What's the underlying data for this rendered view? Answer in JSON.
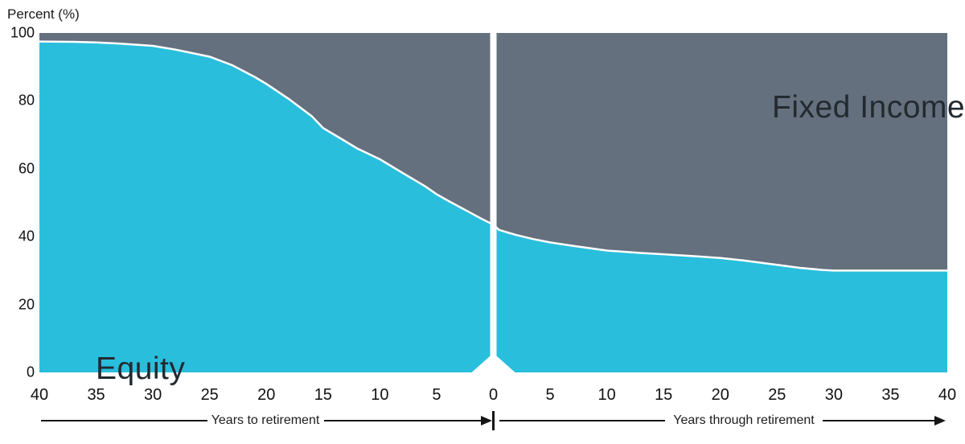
{
  "chart_data": {
    "type": "area",
    "title": "",
    "ylabel": "Percent (%)",
    "ylim": [
      0,
      100
    ],
    "x_range_years": [
      -40,
      40
    ],
    "grid": false,
    "legend_position": "labels-inside-areas",
    "stacked_total": 100,
    "y_ticks": [
      100,
      80,
      60,
      40,
      20,
      0
    ],
    "x_tick_labels": [
      "40",
      "35",
      "30",
      "25",
      "20",
      "15",
      "10",
      "5",
      "0",
      "5",
      "10",
      "15",
      "20",
      "25",
      "30",
      "35",
      "40"
    ],
    "x_axis_segment_labels": {
      "left": "Years to retirement",
      "right": "Years through retirement"
    },
    "retirement_divider_x": 0,
    "series": [
      {
        "name": "Equity",
        "color": "#2ABEDD",
        "points": [
          {
            "x": -40,
            "y": 97.5
          },
          {
            "x": -37,
            "y": 97.4
          },
          {
            "x": -35,
            "y": 97.2
          },
          {
            "x": -33,
            "y": 96.9
          },
          {
            "x": -30,
            "y": 96.2
          },
          {
            "x": -28,
            "y": 95.1
          },
          {
            "x": -25,
            "y": 93
          },
          {
            "x": -23,
            "y": 90.5
          },
          {
            "x": -21,
            "y": 87
          },
          {
            "x": -20,
            "y": 85
          },
          {
            "x": -18,
            "y": 80.5
          },
          {
            "x": -16,
            "y": 75.5
          },
          {
            "x": -15,
            "y": 72
          },
          {
            "x": -13,
            "y": 68
          },
          {
            "x": -12,
            "y": 66
          },
          {
            "x": -10,
            "y": 62.8
          },
          {
            "x": -8,
            "y": 58.8
          },
          {
            "x": -6,
            "y": 54.8
          },
          {
            "x": -5,
            "y": 52.5
          },
          {
            "x": -4,
            "y": 50.6
          },
          {
            "x": -3,
            "y": 48.8
          },
          {
            "x": -2,
            "y": 47
          },
          {
            "x": -1,
            "y": 45.2
          },
          {
            "x": 0,
            "y": 43.5
          },
          {
            "x": 0.5,
            "y": 42
          },
          {
            "x": 2,
            "y": 40.5
          },
          {
            "x": 3.5,
            "y": 39.3
          },
          {
            "x": 5,
            "y": 38.3
          },
          {
            "x": 7,
            "y": 37.3
          },
          {
            "x": 10,
            "y": 35.9
          },
          {
            "x": 13,
            "y": 35.2
          },
          {
            "x": 15,
            "y": 34.8
          },
          {
            "x": 18,
            "y": 34.2
          },
          {
            "x": 20,
            "y": 33.7
          },
          {
            "x": 22,
            "y": 33
          },
          {
            "x": 25,
            "y": 31.7
          },
          {
            "x": 27,
            "y": 30.8
          },
          {
            "x": 29,
            "y": 30.2
          },
          {
            "x": 30,
            "y": 30
          },
          {
            "x": 33,
            "y": 30
          },
          {
            "x": 35,
            "y": 30
          },
          {
            "x": 40,
            "y": 30
          }
        ]
      },
      {
        "name": "Fixed Income",
        "color": "#65707E",
        "values_rule": "complement of Equity up to 100%"
      }
    ],
    "colors": {
      "divider": "#FFFFFF",
      "curve_stroke": "#FFFFFF",
      "axis_text": "#111111",
      "area_label_text": "#222A30"
    }
  }
}
